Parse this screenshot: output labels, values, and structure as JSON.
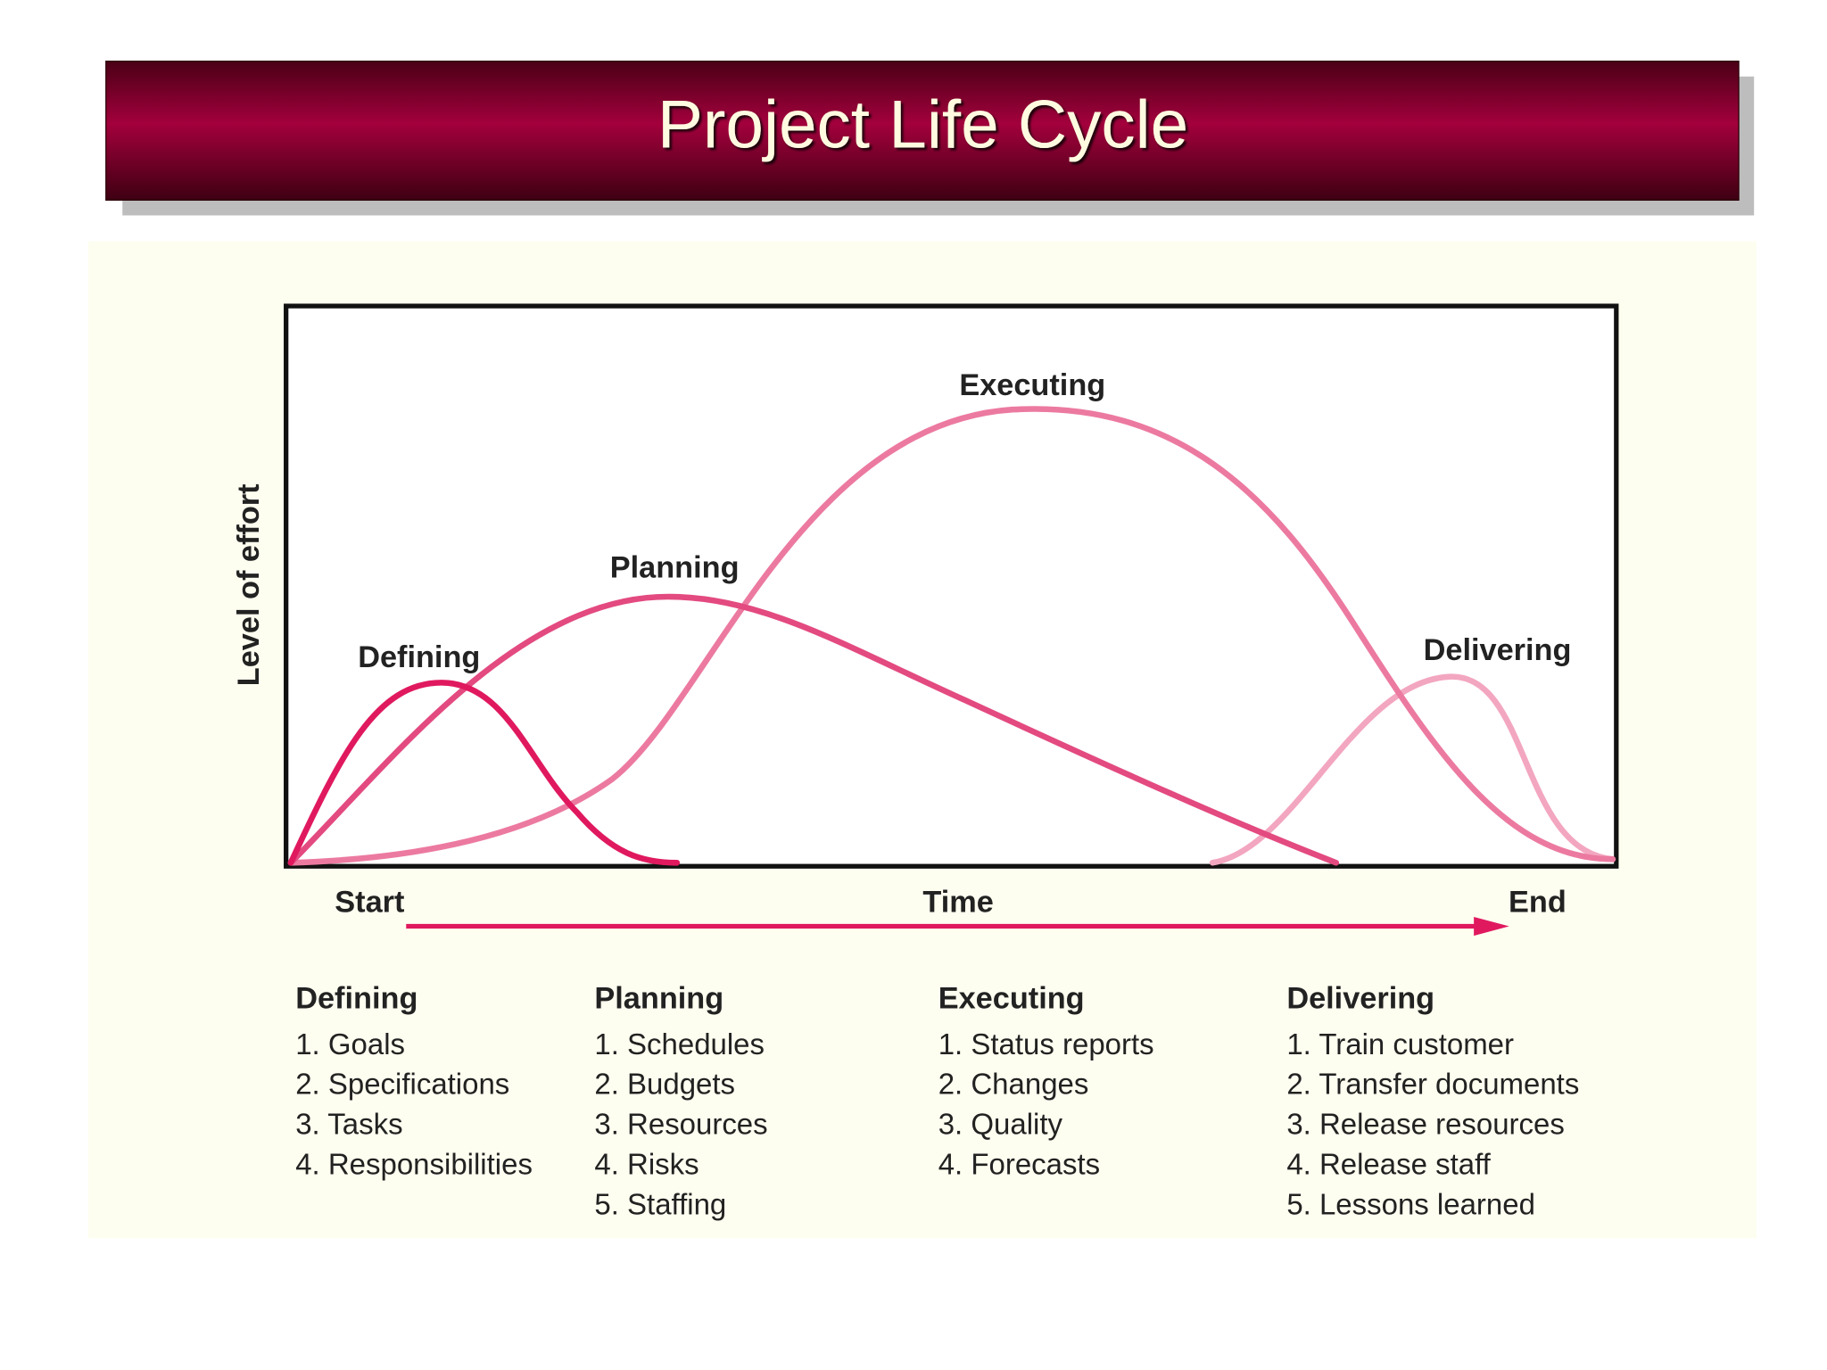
{
  "header": {
    "title": "Project Life Cycle"
  },
  "chart": {
    "y_axis_label": "Level of effort",
    "x_axis_label": "Time",
    "start_label": "Start",
    "end_label": "End",
    "curve_labels": [
      "Defining",
      "Planning",
      "Executing",
      "Delivering"
    ]
  },
  "phases": [
    {
      "name": "Defining",
      "items": [
        "1. Goals",
        "2. Specifications",
        "3. Tasks",
        "4. Responsibilities"
      ]
    },
    {
      "name": "Planning",
      "items": [
        "1. Schedules",
        "2. Budgets",
        "3. Resources",
        "4. Risks",
        "5. Staffing"
      ]
    },
    {
      "name": "Executing",
      "items": [
        "1. Status reports",
        "2. Changes",
        "3. Quality",
        "4. Forecasts"
      ]
    },
    {
      "name": "Delivering",
      "items": [
        "1. Train customer",
        "2. Transfer documents",
        "3. Release resources",
        "4. Release staff",
        "5. Lessons learned"
      ]
    }
  ]
}
